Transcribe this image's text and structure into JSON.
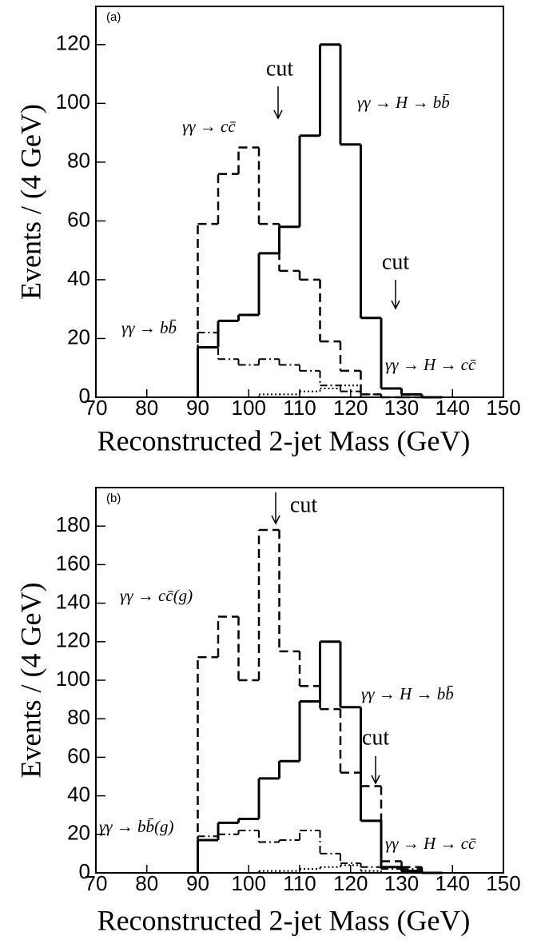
{
  "chart_data": [
    {
      "type": "histogram",
      "panel_label": "(a)",
      "annotations": [
        "cut",
        "cut"
      ],
      "xlabel": "Reconstructed 2-jet Mass (GeV)",
      "ylabel": "Events / (4 GeV)",
      "xlim": [
        70,
        150
      ],
      "xticks": [
        70,
        80,
        90,
        100,
        110,
        120,
        130,
        140,
        150
      ],
      "ylim": [
        0,
        133
      ],
      "yticks": [
        0,
        20,
        40,
        60,
        80,
        100,
        120
      ],
      "bins": [
        90,
        94,
        98,
        102,
        106,
        110,
        114,
        118,
        122,
        126,
        130,
        134,
        138
      ],
      "series": [
        {
          "name": "γγ → H → bb̄",
          "color": "#000000",
          "line_style": "solid",
          "values": [
            17,
            26,
            28,
            49,
            58,
            89,
            120,
            86,
            27,
            3,
            1,
            0
          ]
        },
        {
          "name": "γγ → cc̄",
          "color": "#000000",
          "line_style": "dashed",
          "values": [
            59,
            76,
            85,
            59,
            43,
            40,
            19,
            9,
            1,
            0,
            0,
            0
          ]
        },
        {
          "name": "γγ → bb̄",
          "color": "#000000",
          "line_style": "dashdot",
          "values": [
            22,
            13,
            11,
            13,
            11,
            9,
            4,
            2,
            0,
            0,
            0,
            0
          ]
        },
        {
          "name": "γγ → H → cc̄",
          "color": "#000000",
          "line_style": "dotted",
          "values": [
            0,
            0,
            0,
            1,
            1,
            2,
            3,
            4,
            1,
            0,
            0,
            0
          ]
        }
      ]
    },
    {
      "type": "histogram",
      "panel_label": "(b)",
      "annotations": [
        "cut",
        "cut"
      ],
      "xlabel": "Reconstructed 2-jet Mass (GeV)",
      "ylabel": "Events / (4 GeV)",
      "xlim": [
        70,
        150
      ],
      "xticks": [
        70,
        80,
        90,
        100,
        110,
        120,
        130,
        140,
        150
      ],
      "ylim": [
        0,
        200
      ],
      "yticks": [
        0,
        20,
        40,
        60,
        80,
        100,
        120,
        140,
        160,
        180
      ],
      "bins": [
        90,
        94,
        98,
        102,
        106,
        110,
        114,
        118,
        122,
        126,
        130,
        134,
        138
      ],
      "series": [
        {
          "name": "γγ → H → bb̄",
          "color": "#000000",
          "line_style": "solid",
          "values": [
            17,
            26,
            28,
            49,
            58,
            89,
            120,
            86,
            27,
            3,
            1,
            0
          ]
        },
        {
          "name": "γγ → cc̄(g)",
          "color": "#000000",
          "line_style": "dashed",
          "values": [
            112,
            133,
            100,
            178,
            115,
            97,
            85,
            52,
            45,
            6,
            3,
            0
          ]
        },
        {
          "name": "γγ → bb̄(g)",
          "color": "#000000",
          "line_style": "dashdot",
          "values": [
            19,
            20,
            22,
            16,
            17,
            22,
            10,
            5,
            3,
            2,
            2,
            0
          ]
        },
        {
          "name": "γγ → H → cc̄",
          "color": "#000000",
          "line_style": "dotted",
          "values": [
            0,
            0,
            0,
            1,
            1,
            2,
            3,
            4,
            1,
            0,
            0,
            0
          ]
        }
      ]
    }
  ]
}
